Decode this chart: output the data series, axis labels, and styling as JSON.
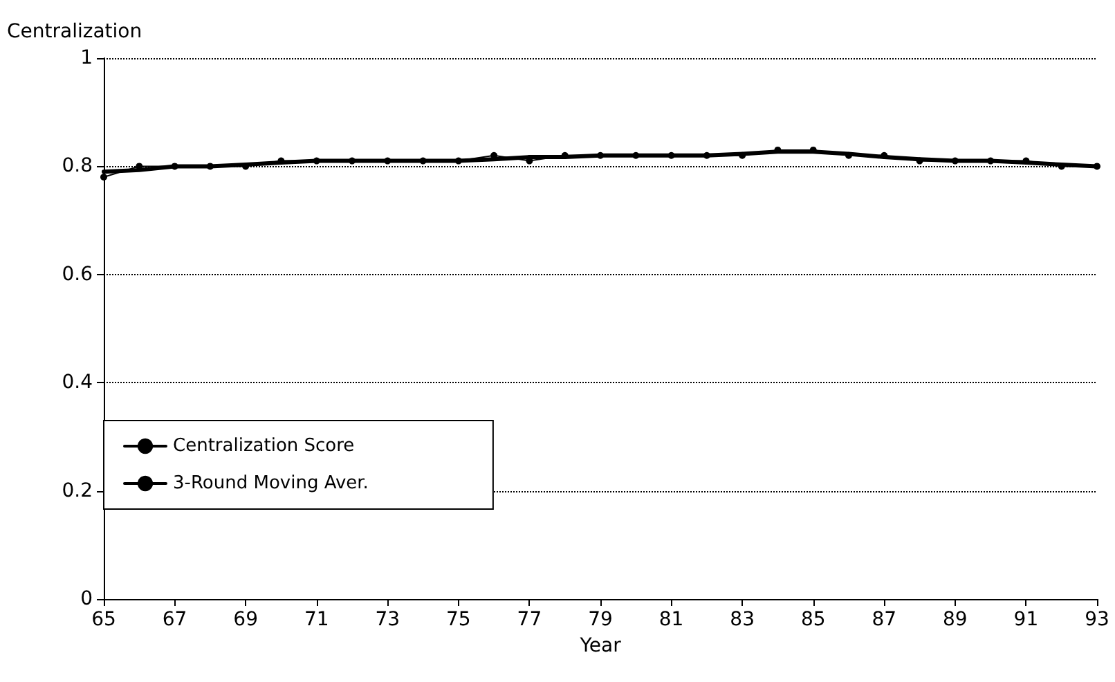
{
  "chart_data": {
    "type": "line",
    "ylabel": "Centralization",
    "xlabel": "Year",
    "x": [
      65,
      66,
      67,
      68,
      69,
      70,
      71,
      72,
      73,
      74,
      75,
      76,
      77,
      78,
      79,
      80,
      81,
      82,
      83,
      84,
      85,
      86,
      87,
      88,
      89,
      90,
      91,
      92,
      93
    ],
    "series": [
      {
        "name": "Centralization Score",
        "color": "#000000",
        "marker": "circle",
        "values": [
          0.78,
          0.8,
          0.8,
          0.8,
          0.8,
          0.81,
          0.81,
          0.81,
          0.81,
          0.81,
          0.81,
          0.82,
          0.81,
          0.82,
          0.82,
          0.82,
          0.82,
          0.82,
          0.82,
          0.83,
          0.83,
          0.82,
          0.82,
          0.81,
          0.81,
          0.81,
          0.81,
          0.8,
          0.8
        ]
      },
      {
        "name": "3-Round Moving Aver.",
        "color": "#000000",
        "marker": "none",
        "values": [
          0.79,
          0.793,
          0.8,
          0.8,
          0.803,
          0.807,
          0.81,
          0.81,
          0.81,
          0.81,
          0.81,
          0.813,
          0.817,
          0.817,
          0.82,
          0.82,
          0.82,
          0.82,
          0.823,
          0.827,
          0.827,
          0.823,
          0.817,
          0.813,
          0.81,
          0.81,
          0.807,
          0.803,
          0.8
        ]
      }
    ],
    "xlim": [
      65,
      93
    ],
    "xticks": [
      65,
      67,
      69,
      71,
      73,
      75,
      77,
      79,
      81,
      83,
      85,
      87,
      89,
      91,
      93
    ],
    "ylim": [
      0,
      1
    ],
    "yticks": [
      0,
      0.2,
      0.4,
      0.6,
      0.8,
      1
    ],
    "grid": "y",
    "legend": "bottom left",
    "line_style": "solid"
  }
}
